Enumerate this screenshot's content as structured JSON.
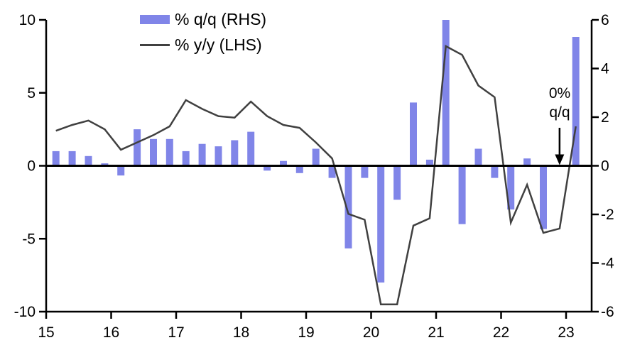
{
  "chart_data": {
    "type": "combo",
    "description": "Dual-axis quarterly chart: bars = % q/q on right axis, line = % y/y on left axis",
    "categories": [
      "15Q1",
      "15Q2",
      "15Q3",
      "15Q4",
      "16Q1",
      "16Q2",
      "16Q3",
      "16Q4",
      "17Q1",
      "17Q2",
      "17Q3",
      "17Q4",
      "18Q1",
      "18Q2",
      "18Q3",
      "18Q4",
      "19Q1",
      "19Q2",
      "19Q3",
      "19Q4",
      "20Q1",
      "20Q2",
      "20Q3",
      "20Q4",
      "21Q1",
      "21Q2",
      "21Q3",
      "21Q4",
      "22Q1",
      "22Q2",
      "22Q3",
      "22Q4",
      "23Q1"
    ],
    "series": [
      {
        "name": "% q/q (RHS)",
        "type": "bar",
        "axis": "right",
        "color": "#8085e8",
        "values": [
          0.6,
          0.6,
          0.4,
          0.1,
          -0.4,
          1.5,
          1.1,
          1.1,
          0.6,
          0.9,
          0.8,
          1.05,
          1.4,
          -0.2,
          0.2,
          -0.3,
          0.7,
          -0.5,
          -3.4,
          -0.5,
          -4.8,
          -1.4,
          2.6,
          0.25,
          6.0,
          -2.4,
          0.7,
          -0.5,
          -1.8,
          0.3,
          -2.6,
          0.0,
          5.3
        ]
      },
      {
        "name": "% y/y (LHS)",
        "type": "line",
        "axis": "left",
        "color": "#404040",
        "values": [
          2.4,
          2.8,
          3.1,
          2.5,
          1.1,
          1.6,
          2.1,
          2.7,
          4.5,
          3.9,
          3.4,
          3.3,
          4.4,
          3.4,
          2.8,
          2.6,
          1.6,
          0.5,
          -3.3,
          -3.7,
          -9.5,
          -9.5,
          -4.1,
          -3.6,
          8.2,
          7.6,
          5.5,
          4.7,
          -3.9,
          -1.3,
          -4.6,
          -4.3,
          2.7
        ]
      }
    ],
    "left_axis": {
      "min": -10,
      "max": 10,
      "ticks": [
        10,
        5,
        0,
        -5,
        -10
      ]
    },
    "right_axis": {
      "min": -6,
      "max": 6,
      "ticks": [
        6,
        4,
        2,
        0,
        -2,
        -4,
        -6
      ]
    },
    "x_axis": {
      "tick_labels": [
        "15",
        "16",
        "17",
        "18",
        "19",
        "20",
        "21",
        "22",
        "23"
      ]
    },
    "grid": false,
    "legend_position": "top-left-inside",
    "annotation": {
      "line1": "0%",
      "line2": "q/q",
      "points_to_category": "22Q4",
      "points_to_value": 0
    },
    "colors": {
      "bar": "#8085e8",
      "line": "#404040",
      "axis": "#000000",
      "text": "#000000"
    }
  }
}
